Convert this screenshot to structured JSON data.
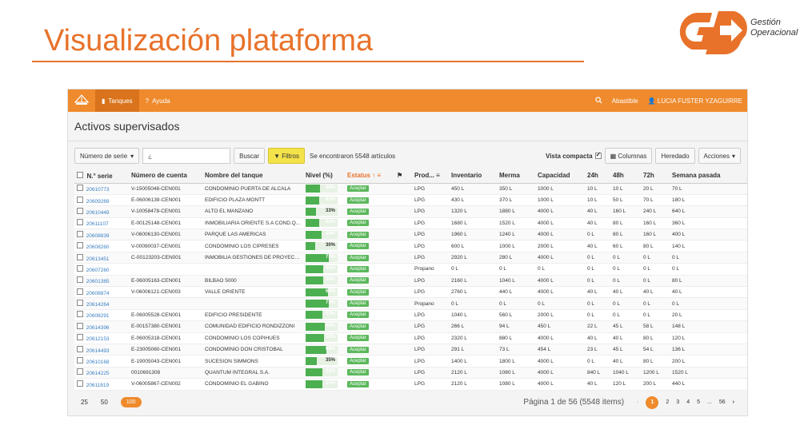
{
  "slide": {
    "title": "Visualización plataforma",
    "logo_line1": "Gestión",
    "logo_line2": "Operacional",
    "logo_color": "#e8722a"
  },
  "topbar": {
    "nav": [
      {
        "label": "Tanques",
        "icon": "tank-icon"
      },
      {
        "label": "Ayuda",
        "icon": "help-icon"
      }
    ],
    "company": "Abastible",
    "user": "LUCIA FUSTER YZAGUIRRE",
    "color": "#ef8a2d"
  },
  "main": {
    "heading": "Activos supervisados",
    "toolbar": {
      "field_select": "Número de serie",
      "search_placeholder": "¿",
      "search_button": "Buscar",
      "filter_button": "Filtros",
      "found_text": "Se encontraron 5548 artículos",
      "compact_label": "Vista compacta",
      "columns_button": "Columnas",
      "inherited_button": "Heredado",
      "actions_button": "Acciones"
    },
    "columns": [
      "N.° serie",
      "Número de cuenta",
      "Nombre del tanque",
      "Nivel (%)",
      "Estatus",
      "",
      "Prod...",
      "Inventario",
      "Merma",
      "Capacidad",
      "24h",
      "48h",
      "72h",
      "Semana pasada"
    ],
    "rows": [
      {
        "serie": "20610773",
        "cuenta": "V-15005048-CEN001",
        "nombre": "CONDOMINIO PUERTA DE ALCALA",
        "nivel": 45,
        "estatus": "Aceptar",
        "prod": "LPG",
        "inv": "450 L",
        "merma": "350 L",
        "cap": "1000 L",
        "h24": "10 L",
        "h48": "10 L",
        "h72": "20 L",
        "semana": "70 L"
      },
      {
        "serie": "20609269",
        "cuenta": "E-06006139-CEN001",
        "nombre": "EDIFICIO PLAZA MONTT",
        "nivel": 43,
        "estatus": "Aceptar",
        "prod": "LPG",
        "inv": "430 L",
        "merma": "370 L",
        "cap": "1000 L",
        "h24": "10 L",
        "h48": "50 L",
        "h72": "70 L",
        "semana": "180 L"
      },
      {
        "serie": "20610449",
        "cuenta": "V-10058478-CEN001",
        "nombre": "ALTO EL MANZANO",
        "nivel": 33,
        "estatus": "Aceptar",
        "prod": "LPG",
        "inv": "1320 L",
        "merma": "1880 L",
        "cap": "4000 L",
        "h24": "40 L",
        "h48": "160 L",
        "h72": "240 L",
        "semana": "640 L"
      },
      {
        "serie": "20611107",
        "cuenta": "E-00125148-CEN001",
        "nombre": "INMOBILIARIA ORIENTE S.A COND.Q...",
        "nivel": 42,
        "estatus": "Aceptar",
        "prod": "LPG",
        "inv": "1680 L",
        "merma": "1520 L",
        "cap": "4000 L",
        "h24": "40 L",
        "h48": "80 L",
        "h72": "160 L",
        "semana": "360 L"
      },
      {
        "serie": "20608839",
        "cuenta": "V-06006130-CEN001",
        "nombre": "PARQUE LAS AMERICAS",
        "nivel": 49,
        "estatus": "Aceptar",
        "prod": "LPG",
        "inv": "1960 L",
        "merma": "1240 L",
        "cap": "4000 L",
        "h24": "0 L",
        "h48": "80 L",
        "h72": "160 L",
        "semana": "400 L"
      },
      {
        "serie": "20608260",
        "cuenta": "V-00090037-CEN001",
        "nombre": "CONDOMINIO LOS CIPRESES",
        "nivel": 30,
        "estatus": "Aceptar",
        "prod": "LPG",
        "inv": "600 L",
        "merma": "1000 L",
        "cap": "2000 L",
        "h24": "40 L",
        "h48": "60 L",
        "h72": "80 L",
        "semana": "140 L"
      },
      {
        "serie": "20613451",
        "cuenta": "C-00123203-CEN001",
        "nombre": "INMOBILIA GESTIONES DE PROYECT...",
        "nivel": 73,
        "estatus": "Aceptar",
        "prod": "LPG",
        "inv": "2920 L",
        "merma": "280 L",
        "cap": "4000 L",
        "h24": "0 L",
        "h48": "0 L",
        "h72": "0 L",
        "semana": "0 L"
      },
      {
        "serie": "20607260",
        "cuenta": "",
        "nombre": "",
        "nivel": 55,
        "estatus": "Aceptar",
        "prod": "Propano",
        "inv": "0 L",
        "merma": "0 L",
        "cap": "0 L",
        "h24": "0 L",
        "h48": "0 L",
        "h72": "0 L",
        "semana": "0 L"
      },
      {
        "serie": "20601385",
        "cuenta": "E-06005163-CEN001",
        "nombre": "BILBAO 5000",
        "nivel": 54,
        "estatus": "Aceptar",
        "prod": "LPG",
        "inv": "2160 L",
        "merma": "1040 L",
        "cap": "4000 L",
        "h24": "0 L",
        "h48": "0 L",
        "h72": "0 L",
        "semana": "80 L"
      },
      {
        "serie": "20608874",
        "cuenta": "V-06006121-CEN003",
        "nombre": "VALLE ORIENTE",
        "nivel": 69,
        "estatus": "Aceptar",
        "prod": "LPG",
        "inv": "2760 L",
        "merma": "440 L",
        "cap": "4000 L",
        "h24": "40 L",
        "h48": "40 L",
        "h72": "40 L",
        "semana": "40 L"
      },
      {
        "serie": "20614264",
        "cuenta": "",
        "nombre": "",
        "nivel": 73,
        "estatus": "Aceptar",
        "prod": "Propano",
        "inv": "0 L",
        "merma": "0 L",
        "cap": "0 L",
        "h24": "0 L",
        "h48": "0 L",
        "h72": "0 L",
        "semana": "0 L"
      },
      {
        "serie": "20608291",
        "cuenta": "E-06005528-CEN001",
        "nombre": "EDIFICIO PRESIDENTE",
        "nivel": 52,
        "estatus": "Aceptar",
        "prod": "LPG",
        "inv": "1040 L",
        "merma": "560 L",
        "cap": "2000 L",
        "h24": "0 L",
        "h48": "0 L",
        "h72": "0 L",
        "semana": "20 L"
      },
      {
        "serie": "20614396",
        "cuenta": "E-00157380-CEN001",
        "nombre": "COMUNIDAD EDIFICIO RONDIZZONI",
        "nivel": 59,
        "estatus": "Aceptar",
        "prod": "LPG",
        "inv": "266 L",
        "merma": "94 L",
        "cap": "450 L",
        "h24": "22 L",
        "h48": "45 L",
        "h72": "58 L",
        "semana": "148 L"
      },
      {
        "serie": "20612153",
        "cuenta": "E-06005318-CEN001",
        "nombre": "CONDOMINIO LOS COPIHUES",
        "nivel": 58,
        "estatus": "Aceptar",
        "prod": "LPG",
        "inv": "2320 L",
        "merma": "880 L",
        "cap": "4000 L",
        "h24": "40 L",
        "h48": "40 L",
        "h72": "80 L",
        "semana": "120 L"
      },
      {
        "serie": "20614493",
        "cuenta": "E-23005060-CEN001",
        "nombre": "CONDOMINIO DON CRISTOBAL",
        "nivel": 64,
        "estatus": "Aceptar",
        "prod": "LPG",
        "inv": "291 L",
        "merma": "73 L",
        "cap": "454 L",
        "h24": "23 L",
        "h48": "45 L",
        "h72": "54 L",
        "semana": "136 L"
      },
      {
        "serie": "20610168",
        "cuenta": "E-19005043-CEN001",
        "nombre": "SUCESION SIMMONS",
        "nivel": 35,
        "estatus": "Aceptar",
        "prod": "LPG",
        "inv": "1400 L",
        "merma": "1800 L",
        "cap": "4000 L",
        "h24": "0 L",
        "h48": "40 L",
        "h72": "80 L",
        "semana": "200 L"
      },
      {
        "serie": "20614225",
        "cuenta": "0010691308",
        "nombre": "QUANTUM INTEGRAL S.A.",
        "nivel": 53,
        "estatus": "Aceptar",
        "prod": "LPG",
        "inv": "2120 L",
        "merma": "1080 L",
        "cap": "4000 L",
        "h24": "840 L",
        "h48": "1040 L",
        "h72": "1200 L",
        "semana": "1520 L"
      },
      {
        "serie": "20611819",
        "cuenta": "V-06005867-CEN002",
        "nombre": "CONDOMINIO EL GABINO",
        "nivel": 53,
        "estatus": "Aceptar",
        "prod": "LPG",
        "inv": "2120 L",
        "merma": "1080 L",
        "cap": "4000 L",
        "h24": "40 L",
        "h48": "120 L",
        "h72": "200 L",
        "semana": "440 L"
      }
    ],
    "footer": {
      "page_sizes": [
        "25",
        "50",
        "100"
      ],
      "active_size": "100",
      "page_info": "Página 1 de 56 (5548 items)",
      "pages": [
        "1",
        "2",
        "3",
        "4",
        "5",
        "...",
        "56"
      ],
      "current_page": "1"
    }
  }
}
